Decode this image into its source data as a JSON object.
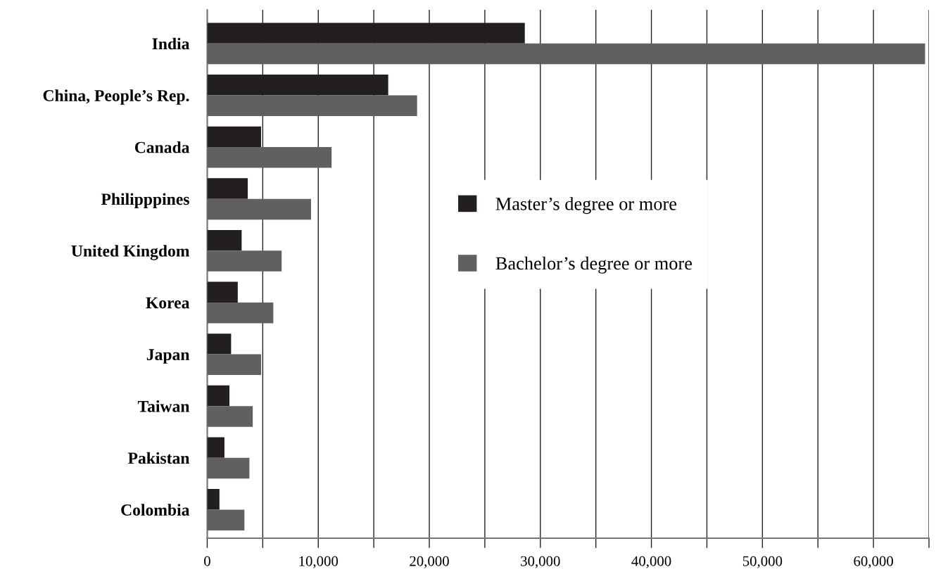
{
  "chart_data": {
    "type": "bar",
    "orientation": "horizontal",
    "categories": [
      "India",
      "China, People’s Rep.",
      "Canada",
      "Philipppines",
      "United Kingdom",
      "Korea",
      "Japan",
      "Taiwan",
      "Pakistan",
      "Colombia"
    ],
    "series": [
      {
        "name": "Master’s degree or more",
        "color": "#231f20",
        "values": [
          28600,
          16300,
          4850,
          3650,
          3100,
          2750,
          2150,
          2000,
          1550,
          1100
        ]
      },
      {
        "name": "Bachelor’s degree or more",
        "color": "#606060",
        "values": [
          64650,
          18900,
          11200,
          9350,
          6700,
          5950,
          4850,
          4100,
          3800,
          3350
        ]
      }
    ],
    "xlim": [
      0,
      65000
    ],
    "xticks": [
      0,
      {
        "value": 5000,
        "label": null
      },
      {
        "value": 10000,
        "label": "10,000"
      },
      {
        "value": 15000,
        "label": null
      },
      {
        "value": 20000,
        "label": "20,000"
      },
      {
        "value": 25000,
        "label": null
      },
      {
        "value": 30000,
        "label": "30,000"
      },
      {
        "value": 35000,
        "label": null
      },
      {
        "value": 40000,
        "label": "40,000"
      },
      {
        "value": 45000,
        "label": null
      },
      {
        "value": 50000,
        "label": "50,000"
      },
      {
        "value": 55000,
        "label": null
      },
      {
        "value": 60000,
        "label": "60,000"
      },
      {
        "value": 65000,
        "label": null
      }
    ],
    "grid": "x",
    "legend": "center"
  }
}
